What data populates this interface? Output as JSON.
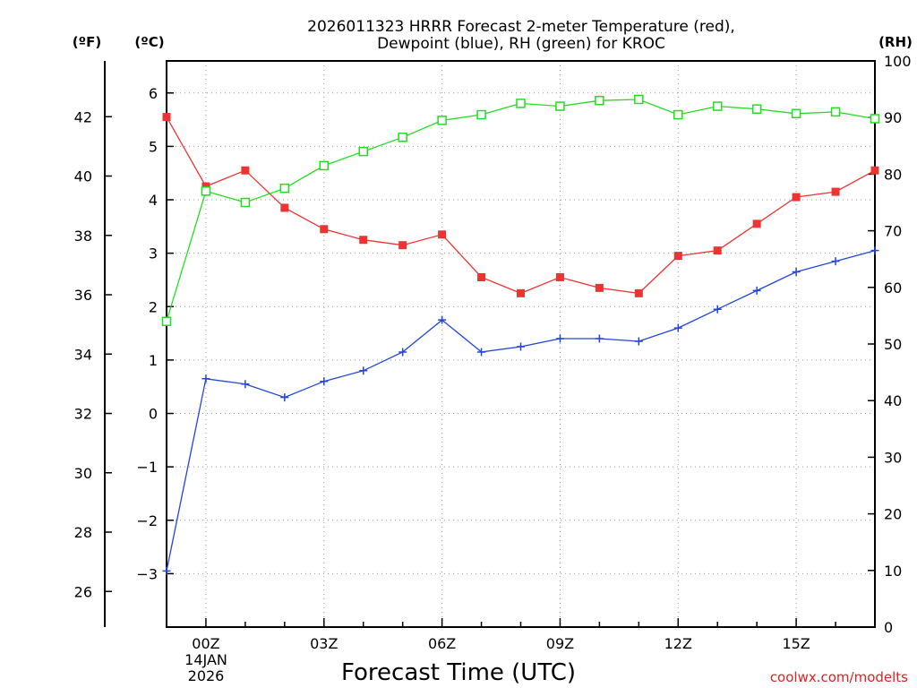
{
  "chart_data": {
    "type": "line",
    "title_lines": [
      "2026011323 HRRR Forecast 2-meter Temperature (red),",
      "Dewpoint (blue), RH (green) for KROC"
    ],
    "xlabel": "Forecast Time (UTC)",
    "credit": "coolwx.com/modelts",
    "units": {
      "f": "(ºF)",
      "c": "(ºC)",
      "rh": "(RH)"
    },
    "x_hours": [
      -1,
      0,
      1,
      2,
      3,
      4,
      5,
      6,
      7,
      8,
      9,
      10,
      11,
      12,
      13,
      14,
      15,
      16,
      17
    ],
    "xlim": [
      -1,
      17
    ],
    "x_ticks": [
      {
        "hour": 0,
        "label": "00Z"
      },
      {
        "hour": 3,
        "label": "03Z"
      },
      {
        "hour": 6,
        "label": "06Z"
      },
      {
        "hour": 9,
        "label": "09Z"
      },
      {
        "hour": 12,
        "label": "12Z"
      },
      {
        "hour": 15,
        "label": "15Z"
      }
    ],
    "date_label": [
      "14JAN",
      "2026"
    ],
    "celsius_axis": {
      "ylim": [
        -4.0,
        6.6
      ],
      "ticks": [
        -3,
        -2,
        -1,
        0,
        1,
        2,
        3,
        4,
        5,
        6
      ]
    },
    "fahrenheit_axis": {
      "ticks": [
        26,
        28,
        30,
        32,
        34,
        36,
        38,
        40,
        42
      ]
    },
    "rh_axis": {
      "ylim": [
        0,
        100
      ],
      "ticks": [
        0,
        10,
        20,
        30,
        40,
        50,
        60,
        70,
        80,
        90,
        100
      ]
    },
    "series": [
      {
        "name": "Temperature",
        "axis": "celsius",
        "color": "#ee3333",
        "marker": "filled-square",
        "values": [
          5.55,
          4.25,
          4.55,
          3.85,
          3.45,
          3.25,
          3.15,
          3.35,
          2.55,
          2.25,
          2.55,
          2.35,
          2.25,
          2.95,
          3.05,
          3.55,
          4.05,
          4.15,
          4.55
        ]
      },
      {
        "name": "Dewpoint",
        "axis": "celsius",
        "color": "#2244dd",
        "marker": "plus",
        "values": [
          -2.95,
          0.65,
          0.55,
          0.3,
          0.6,
          0.8,
          1.15,
          1.75,
          1.15,
          1.25,
          1.4,
          1.4,
          1.35,
          1.6,
          1.95,
          2.3,
          2.65,
          2.85,
          3.05
        ]
      },
      {
        "name": "RH",
        "axis": "rh",
        "color": "#22dd22",
        "marker": "open-square",
        "values": [
          54,
          77,
          75,
          77.5,
          81.5,
          84,
          86.5,
          89.5,
          90.5,
          92.5,
          92,
          93,
          93.2,
          90.5,
          92,
          91.5,
          90.7,
          91,
          89.8
        ]
      }
    ]
  }
}
